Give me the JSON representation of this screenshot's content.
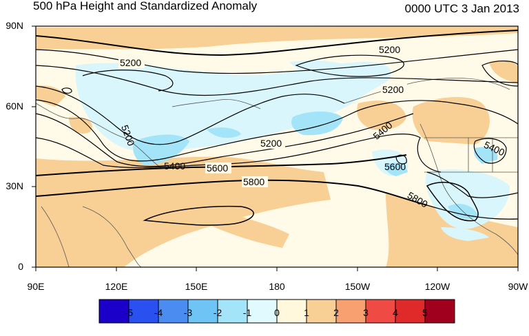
{
  "title": "500 hPa Height and Standardized Anomaly",
  "valid_time": "0000 UTC 3 Jan 2013",
  "lat_ticks": [
    {
      "label": "90N",
      "value": 90
    },
    {
      "label": "60N",
      "value": 60
    },
    {
      "label": "30N",
      "value": 30
    },
    {
      "label": "0",
      "value": 0
    }
  ],
  "lon_ticks": [
    {
      "label": "90E",
      "value": 90
    },
    {
      "label": "120E",
      "value": 120
    },
    {
      "label": "150E",
      "value": 150
    },
    {
      "label": "180",
      "value": 180
    },
    {
      "label": "150W",
      "value": 210
    },
    {
      "label": "120W",
      "value": 240
    },
    {
      "label": "90W",
      "value": 270
    }
  ],
  "contour_labels": [
    "5200",
    "5200",
    "5200",
    "5200",
    "5200",
    "5400",
    "5400",
    "5400",
    "5600",
    "5600",
    "5800",
    "5800"
  ],
  "colorbar": {
    "ticks": [
      "-5",
      "-4",
      "-3",
      "-2",
      "-1",
      "0",
      "1",
      "2",
      "3",
      "4",
      "5"
    ],
    "colors": [
      "#1a00c8",
      "#2a50f0",
      "#4a8cf0",
      "#6ec4f4",
      "#a4e4f8",
      "#e0fafd",
      "#fff8dc",
      "#f8cf94",
      "#f8a070",
      "#f04a44",
      "#e02a2a",
      "#a0001e"
    ]
  }
}
